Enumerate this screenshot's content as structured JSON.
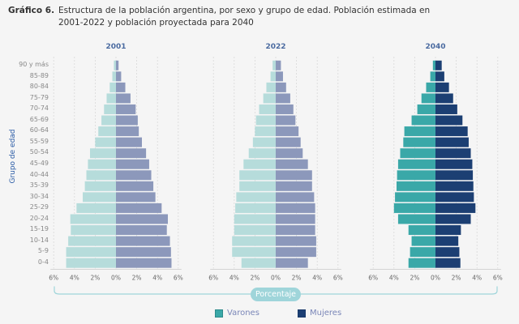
{
  "header": {
    "title_lead": "Gráfico 6.",
    "title_text": "Estructura de la población argentina, por sexo y grupo de edad. Población estimada en 2001-2022 y población proyectada para 2040"
  },
  "axis": {
    "y_label": "Grupo de edad",
    "x_label": "Porcentaje"
  },
  "legend": [
    {
      "label": "Varones",
      "color": "#3aa8a8"
    },
    {
      "label": "Mujeres",
      "color": "#1c3f73"
    }
  ],
  "chart_data": [
    {
      "type": "bar",
      "orientation": "population-pyramid",
      "title": "2001",
      "xlabel": "Porcentaje",
      "ylabel": "Grupo de edad",
      "xlim": [
        -6,
        6
      ],
      "x_ticks": [
        "6%",
        "4%",
        "2%",
        "0%",
        "2%",
        "4%",
        "6%"
      ],
      "categories": [
        "90 y más",
        "85-89",
        "80-84",
        "75-79",
        "70-74",
        "65-69",
        "60-64",
        "55-59",
        "50-54",
        "45-49",
        "40-44",
        "35-39",
        "30-34",
        "25-29",
        "20-24",
        "15-19",
        "10-14",
        "5-9",
        "0-4"
      ],
      "colors": {
        "Varones": "#b6dcdb",
        "Mujeres": "#8c98bb"
      },
      "series": [
        {
          "name": "Varones",
          "values": [
            0.2,
            0.35,
            0.6,
            0.9,
            1.15,
            1.4,
            1.7,
            2.0,
            2.5,
            2.7,
            2.85,
            3.0,
            3.2,
            3.8,
            4.4,
            4.35,
            4.6,
            4.8,
            4.8
          ]
        },
        {
          "name": "Mujeres",
          "values": [
            0.25,
            0.5,
            0.9,
            1.4,
            1.9,
            2.1,
            2.2,
            2.5,
            2.9,
            3.2,
            3.4,
            3.6,
            3.8,
            4.4,
            5.0,
            4.9,
            5.2,
            5.3,
            5.35
          ]
        }
      ]
    },
    {
      "type": "bar",
      "orientation": "population-pyramid",
      "title": "2022",
      "xlabel": "Porcentaje",
      "ylabel": "Grupo de edad",
      "xlim": [
        -6,
        6
      ],
      "x_ticks": [
        "6%",
        "4%",
        "2%",
        "0%",
        "2%",
        "4%",
        "6%"
      ],
      "categories": [
        "90 y más",
        "85-89",
        "80-84",
        "75-79",
        "70-74",
        "65-69",
        "60-64",
        "55-59",
        "50-54",
        "45-49",
        "40-44",
        "35-39",
        "30-34",
        "25-29",
        "20-24",
        "15-19",
        "10-14",
        "5-9",
        "0-4"
      ],
      "colors": {
        "Varones": "#b6dcdb",
        "Mujeres": "#8c98bb"
      },
      "series": [
        {
          "name": "Varones",
          "values": [
            0.3,
            0.5,
            0.9,
            1.2,
            1.6,
            1.9,
            2.0,
            2.2,
            2.6,
            3.1,
            3.5,
            3.5,
            3.8,
            3.9,
            4.0,
            4.0,
            4.2,
            4.2,
            3.3
          ]
        },
        {
          "name": "Mujeres",
          "values": [
            0.5,
            0.7,
            1.0,
            1.4,
            1.7,
            1.9,
            2.2,
            2.4,
            2.6,
            3.1,
            3.5,
            3.5,
            3.7,
            3.8,
            3.8,
            3.8,
            3.9,
            3.9,
            3.1
          ]
        }
      ]
    },
    {
      "type": "bar",
      "orientation": "population-pyramid",
      "title": "2040",
      "xlabel": "Porcentaje",
      "ylabel": "Grupo de edad",
      "xlim": [
        -6,
        6
      ],
      "x_ticks": [
        "6%",
        "4%",
        "2%",
        "0%",
        "2%",
        "4%",
        "6%"
      ],
      "categories": [
        "90 y más",
        "85-89",
        "80-84",
        "75-79",
        "70-74",
        "65-69",
        "60-64",
        "55-59",
        "50-54",
        "45-49",
        "40-44",
        "35-39",
        "30-34",
        "25-29",
        "20-24",
        "15-19",
        "10-14",
        "5-9",
        "0-4"
      ],
      "colors": {
        "Varones": "#3aa8a8",
        "Mujeres": "#1c3f73"
      },
      "series": [
        {
          "name": "Varones",
          "values": [
            0.25,
            0.5,
            0.9,
            1.35,
            1.75,
            2.3,
            3.0,
            3.1,
            3.4,
            3.6,
            3.7,
            3.75,
            3.9,
            4.0,
            3.6,
            2.6,
            2.3,
            2.45,
            2.6
          ]
        },
        {
          "name": "Mujeres",
          "values": [
            0.6,
            0.85,
            1.3,
            1.7,
            2.1,
            2.6,
            3.1,
            3.2,
            3.4,
            3.55,
            3.6,
            3.65,
            3.7,
            3.85,
            3.4,
            2.45,
            2.2,
            2.3,
            2.4
          ]
        }
      ]
    }
  ]
}
